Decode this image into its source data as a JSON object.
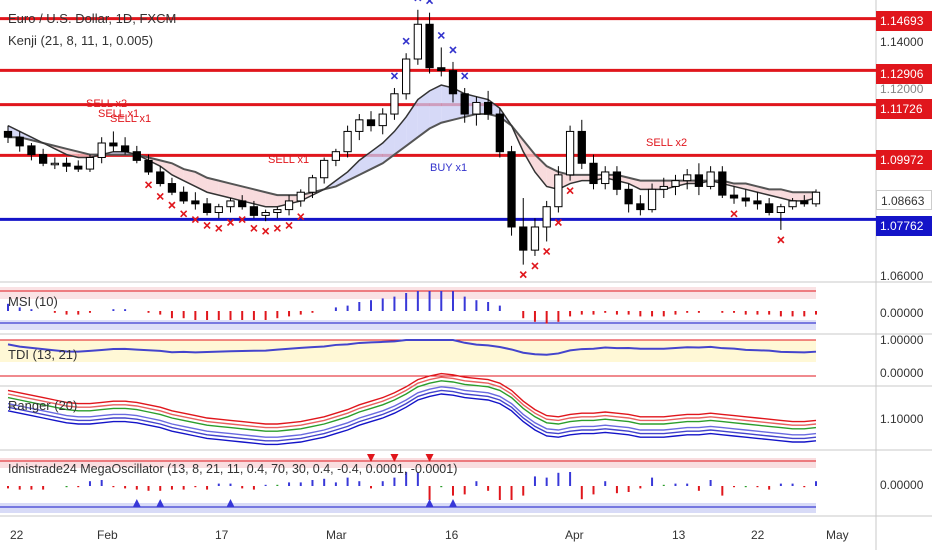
{
  "chart": {
    "symbol_title": "Euro / U.S. Dollar, 1D, FXCM",
    "indicator_label": "Kenji (21, 8, 11, 1, 0.005)"
  },
  "price_lines": [
    {
      "label": "1.14693",
      "kind": "red"
    },
    {
      "label": "1.12906",
      "kind": "red"
    },
    {
      "label": "1.11726",
      "kind": "red"
    },
    {
      "label": "1.09972",
      "kind": "red"
    },
    {
      "label": "1.07762",
      "kind": "blue"
    }
  ],
  "axis_ticks": {
    "main": [
      "1.14000",
      "1.12000",
      "1.08663",
      "1.06000"
    ],
    "msi": [
      "0.00000"
    ],
    "tdi": [
      "1.00000",
      "0.00000"
    ],
    "ranger": [
      "1.10000"
    ],
    "mega": [
      "0.00000"
    ]
  },
  "x_axis": [
    "22",
    "Feb",
    "17",
    "Mar",
    "16",
    "Apr",
    "13",
    "22",
    "May"
  ],
  "signals": {
    "sell_labels": [
      "SELL x2",
      "SELL x1",
      "SELL x1",
      "SELL x1",
      "SELL x2"
    ],
    "buy_labels": [
      "BUY x1"
    ]
  },
  "panes": {
    "msi_title": "MSI (10)",
    "tdi_title": "TDI (13, 21)",
    "ranger_title": "Ranger (20)",
    "mega_title": "Idnistrade24 MegaOscillator (13, 8, 21, 11, 0.4, 70, 30, 0.4, -0.4, 0.0001, -0.0001)"
  },
  "colors": {
    "up": "#ffffff",
    "down": "#000000",
    "resistance": "#e0161c",
    "support": "#1414c8",
    "sell_marker": "#e0161c",
    "buy_marker": "#3333cc"
  },
  "chart_data": {
    "type": "candlestick",
    "title": "Euro / U.S. Dollar, 1D, FXCM",
    "price_range": [
      1.056,
      1.152
    ],
    "horizontal_levels": [
      1.14693,
      1.12906,
      1.11726,
      1.09972,
      1.07762
    ],
    "last_price": 1.08663,
    "ohlc": [
      [
        1.108,
        1.11,
        1.104,
        1.106
      ],
      [
        1.106,
        1.108,
        1.101,
        1.103
      ],
      [
        1.103,
        1.104,
        1.098,
        1.1
      ],
      [
        1.1,
        1.102,
        1.096,
        1.097
      ],
      [
        1.097,
        1.099,
        1.095,
        1.097
      ],
      [
        1.097,
        1.099,
        1.094,
        1.096
      ],
      [
        1.096,
        1.098,
        1.094,
        1.095
      ],
      [
        1.095,
        1.1,
        1.094,
        1.099
      ],
      [
        1.099,
        1.106,
        1.097,
        1.104
      ],
      [
        1.104,
        1.108,
        1.101,
        1.103
      ],
      [
        1.103,
        1.106,
        1.1,
        1.101
      ],
      [
        1.101,
        1.103,
        1.097,
        1.098
      ],
      [
        1.098,
        1.1,
        1.093,
        1.094
      ],
      [
        1.094,
        1.096,
        1.089,
        1.09
      ],
      [
        1.09,
        1.092,
        1.086,
        1.087
      ],
      [
        1.087,
        1.089,
        1.083,
        1.084
      ],
      [
        1.084,
        1.087,
        1.081,
        1.083
      ],
      [
        1.083,
        1.085,
        1.079,
        1.08
      ],
      [
        1.08,
        1.083,
        1.078,
        1.082
      ],
      [
        1.082,
        1.085,
        1.08,
        1.084
      ],
      [
        1.084,
        1.086,
        1.081,
        1.082
      ],
      [
        1.082,
        1.084,
        1.078,
        1.079
      ],
      [
        1.079,
        1.081,
        1.077,
        1.08
      ],
      [
        1.08,
        1.082,
        1.078,
        1.081
      ],
      [
        1.081,
        1.086,
        1.079,
        1.084
      ],
      [
        1.084,
        1.088,
        1.082,
        1.087
      ],
      [
        1.087,
        1.093,
        1.085,
        1.092
      ],
      [
        1.092,
        1.099,
        1.09,
        1.098
      ],
      [
        1.098,
        1.102,
        1.096,
        1.101
      ],
      [
        1.101,
        1.11,
        1.099,
        1.108
      ],
      [
        1.108,
        1.114,
        1.105,
        1.112
      ],
      [
        1.112,
        1.115,
        1.108,
        1.11
      ],
      [
        1.11,
        1.116,
        1.107,
        1.114
      ],
      [
        1.114,
        1.123,
        1.112,
        1.121
      ],
      [
        1.121,
        1.135,
        1.119,
        1.133
      ],
      [
        1.133,
        1.15,
        1.131,
        1.145
      ],
      [
        1.145,
        1.149,
        1.128,
        1.13
      ],
      [
        1.13,
        1.137,
        1.127,
        1.129
      ],
      [
        1.129,
        1.132,
        1.118,
        1.121
      ],
      [
        1.121,
        1.123,
        1.111,
        1.114
      ],
      [
        1.114,
        1.12,
        1.11,
        1.118
      ],
      [
        1.118,
        1.122,
        1.112,
        1.114
      ],
      [
        1.114,
        1.116,
        1.099,
        1.101
      ],
      [
        1.101,
        1.103,
        1.072,
        1.075
      ],
      [
        1.075,
        1.085,
        1.062,
        1.067
      ],
      [
        1.067,
        1.078,
        1.065,
        1.075
      ],
      [
        1.075,
        1.084,
        1.07,
        1.082
      ],
      [
        1.082,
        1.096,
        1.08,
        1.093
      ],
      [
        1.093,
        1.11,
        1.091,
        1.108
      ],
      [
        1.108,
        1.112,
        1.095,
        1.097
      ],
      [
        1.097,
        1.1,
        1.088,
        1.09
      ],
      [
        1.09,
        1.096,
        1.088,
        1.094
      ],
      [
        1.094,
        1.096,
        1.086,
        1.088
      ],
      [
        1.088,
        1.09,
        1.08,
        1.083
      ],
      [
        1.083,
        1.086,
        1.079,
        1.081
      ],
      [
        1.081,
        1.09,
        1.08,
        1.088
      ],
      [
        1.088,
        1.092,
        1.085,
        1.089
      ],
      [
        1.089,
        1.093,
        1.086,
        1.091
      ],
      [
        1.091,
        1.095,
        1.088,
        1.093
      ],
      [
        1.093,
        1.097,
        1.086,
        1.089
      ],
      [
        1.089,
        1.096,
        1.088,
        1.094
      ],
      [
        1.094,
        1.096,
        1.085,
        1.086
      ],
      [
        1.086,
        1.089,
        1.083,
        1.085
      ],
      [
        1.085,
        1.088,
        1.082,
        1.084
      ],
      [
        1.084,
        1.087,
        1.081,
        1.083
      ],
      [
        1.083,
        1.085,
        1.079,
        1.08
      ],
      [
        1.08,
        1.083,
        1.074,
        1.082
      ],
      [
        1.082,
        1.085,
        1.081,
        1.084
      ],
      [
        1.084,
        1.086,
        1.082,
        1.083
      ],
      [
        1.083,
        1.088,
        1.082,
        1.087
      ]
    ],
    "kenji_fast": [
      1.11,
      1.108,
      1.106,
      1.104,
      1.102,
      1.1,
      1.099,
      1.099,
      1.1,
      1.101,
      1.101,
      1.1,
      1.098,
      1.096,
      1.093,
      1.091,
      1.089,
      1.087,
      1.086,
      1.085,
      1.084,
      1.083,
      1.082,
      1.082,
      1.083,
      1.084,
      1.086,
      1.088,
      1.091,
      1.094,
      1.098,
      1.101,
      1.104,
      1.108,
      1.113,
      1.119,
      1.122,
      1.124,
      1.123,
      1.121,
      1.12,
      1.119,
      1.116,
      1.11,
      1.101,
      1.094,
      1.089,
      1.088,
      1.09,
      1.091,
      1.091,
      1.092,
      1.091,
      1.09,
      1.088,
      1.088,
      1.088,
      1.089,
      1.09,
      1.09,
      1.091,
      1.09,
      1.089,
      1.088,
      1.087,
      1.086,
      1.085,
      1.084,
      1.084,
      1.085
    ],
    "kenji_slow": [
      1.106,
      1.106,
      1.105,
      1.104,
      1.103,
      1.102,
      1.101,
      1.1,
      1.1,
      1.1,
      1.1,
      1.1,
      1.099,
      1.098,
      1.097,
      1.095,
      1.094,
      1.092,
      1.091,
      1.09,
      1.089,
      1.088,
      1.087,
      1.086,
      1.086,
      1.086,
      1.087,
      1.088,
      1.089,
      1.091,
      1.093,
      1.095,
      1.097,
      1.1,
      1.103,
      1.106,
      1.109,
      1.111,
      1.112,
      1.113,
      1.114,
      1.114,
      1.113,
      1.11,
      1.105,
      1.1,
      1.096,
      1.094,
      1.093,
      1.093,
      1.093,
      1.093,
      1.093,
      1.092,
      1.091,
      1.091,
      1.091,
      1.091,
      1.091,
      1.091,
      1.091,
      1.091,
      1.09,
      1.09,
      1.089,
      1.088,
      1.088,
      1.087,
      1.087,
      1.087
    ],
    "sell_markers": [
      12,
      13,
      14,
      15,
      16,
      17,
      18,
      19,
      20,
      21,
      22,
      23,
      24,
      25,
      62,
      66
    ],
    "upper_markers": [
      33,
      34,
      35,
      36,
      37,
      38,
      39
    ],
    "lower_markers": [
      44,
      45,
      46,
      47,
      48
    ]
  }
}
